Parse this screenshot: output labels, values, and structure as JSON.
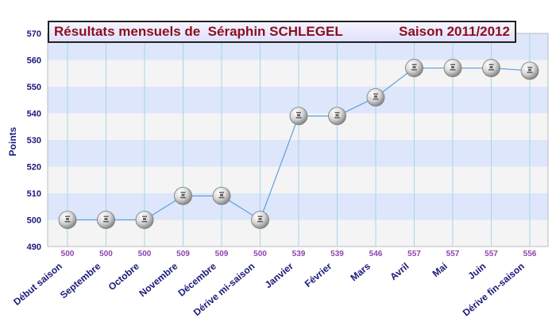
{
  "chart_data": {
    "type": "line",
    "title": "Résultats mensuels de  Séraphin SCHLEGEL",
    "subtitle": "Saison 2011/2012",
    "ylabel": "Points",
    "xlabel": "",
    "ylim": [
      490,
      570
    ],
    "yticks": [
      490,
      500,
      510,
      520,
      530,
      540,
      550,
      560,
      570
    ],
    "categories": [
      "Début saison",
      "Septembre",
      "Octobre",
      "Novembre",
      "Décembre",
      "Dérive mi-saison",
      "Janvier",
      "Février",
      "Mars",
      "Avril",
      "Mai",
      "Juin",
      "Dérive fin-saison"
    ],
    "values": [
      500,
      500,
      500,
      509,
      509,
      500,
      539,
      539,
      546,
      557,
      557,
      557,
      556
    ],
    "grid": true,
    "colors": {
      "line": "#5aa0e0",
      "band_blue": "#dde6fb",
      "band_grey": "#f4f4f4",
      "vgrid": "#a8d4e8",
      "value_labels": "#8e44ad",
      "category_labels": "#1a1a7a",
      "ytick_labels": "#1a1a7a",
      "title": "#8b0f1f"
    }
  }
}
